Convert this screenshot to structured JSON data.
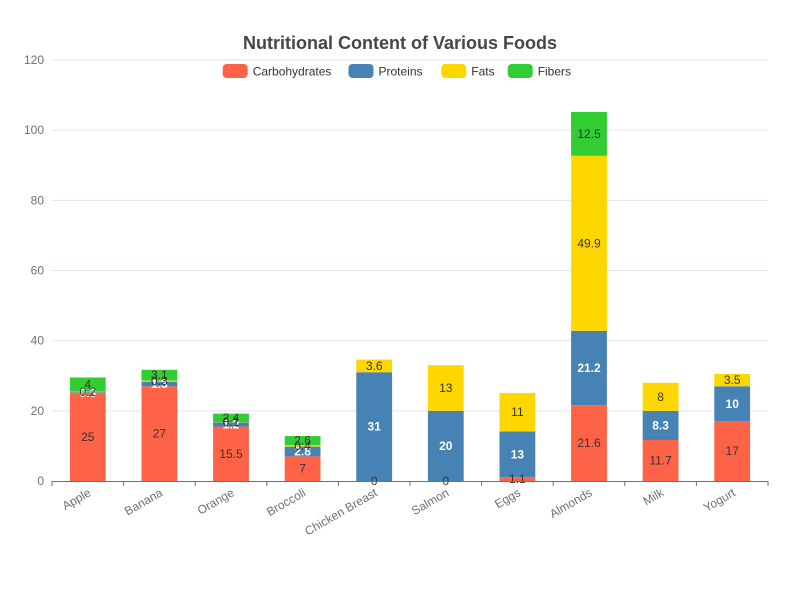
{
  "chart_data": {
    "type": "bar",
    "stacked": true,
    "title": "Nutritional Content of Various Foods",
    "xlabel": "",
    "ylabel": "",
    "ylim": [
      0,
      120
    ],
    "yticks": [
      0,
      20,
      40,
      60,
      80,
      100,
      120
    ],
    "grid": true,
    "legend_position": "top-center",
    "categories": [
      "Apple",
      "Banana",
      "Orange",
      "Broccoli",
      "Chicken Breast",
      "Salmon",
      "Eggs",
      "Almonds",
      "Milk",
      "Yogurt"
    ],
    "series": [
      {
        "name": "Carbohydrates",
        "color": "#ff6347",
        "label_color": "#333333",
        "values": [
          25,
          27,
          15.5,
          7,
          0,
          0,
          1.1,
          21.6,
          11.7,
          17
        ]
      },
      {
        "name": "Proteins",
        "color": "#4682b4",
        "label_color": "#ffffff",
        "values": [
          0.3,
          1.3,
          1.2,
          2.8,
          31,
          20,
          13,
          21.2,
          8.3,
          10
        ]
      },
      {
        "name": "Fats",
        "color": "#ffd700",
        "label_color": "#333333",
        "values": [
          0.2,
          0.3,
          0.1,
          0.4,
          3.6,
          13,
          11,
          49.9,
          8,
          3.5
        ]
      },
      {
        "name": "Fibers",
        "color": "#32cd32",
        "label_color": "#333333",
        "values": [
          4,
          3.1,
          2.4,
          2.6,
          0,
          0,
          0,
          12.5,
          0,
          0
        ]
      }
    ]
  }
}
